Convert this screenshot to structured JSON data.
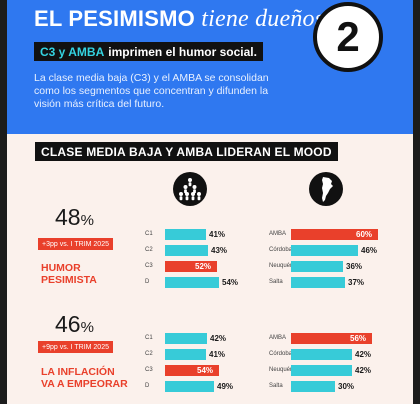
{
  "header": {
    "title_bold": "EL PESIMISMO",
    "title_light": "tiene dueños:",
    "number": "2",
    "subtitle_a": "C3 y AMBA",
    "subtitle_b": "imprimen el humor social.",
    "description": "La clase media baja (C3) y el AMBA se consolidan como los segmentos que concentran y difunden la visión más crítica del futuro."
  },
  "section": {
    "title": "CLASE MEDIA BAJA Y AMBA LIDERAN EL MOOD"
  },
  "colors": {
    "banner": "#2f78f0",
    "cyan": "#37cbd8",
    "red": "#e9402b",
    "dark": "#111111",
    "background": "#fbf1ec"
  },
  "icons": {
    "segments": "people-pyramid-icon",
    "regions": "argentina-map-icon"
  },
  "stats": [
    {
      "value": "48",
      "unit": "%",
      "change": "+3pp vs. I TRIM 2025",
      "label_1": "HUMOR",
      "label_2": "PESIMISTA"
    },
    {
      "value": "46",
      "unit": "%",
      "change": "+9pp vs. I TRIM 2025",
      "label_1": "LA INFLACIÓN",
      "label_2": "VA A EMPEORAR"
    }
  ],
  "chart_data": [
    {
      "type": "bar",
      "orientation": "horizontal",
      "group": "HUMOR PESIMISTA",
      "dimension": "segment",
      "categories": [
        "C1",
        "C2",
        "C3",
        "D"
      ],
      "values": [
        41,
        43,
        52,
        54
      ],
      "labels": [
        "41%",
        "43%",
        "52%",
        "54%"
      ],
      "highlighted": [
        "C3"
      ],
      "xlim": [
        0,
        60
      ]
    },
    {
      "type": "bar",
      "orientation": "horizontal",
      "group": "HUMOR PESIMISTA",
      "dimension": "region",
      "categories": [
        "AMBA",
        "Córdoba",
        "Neuquén",
        "Salta"
      ],
      "values": [
        60,
        46,
        36,
        37
      ],
      "labels": [
        "60%",
        "46%",
        "36%",
        "37%"
      ],
      "highlighted": [
        "AMBA"
      ],
      "xlim": [
        0,
        60
      ]
    },
    {
      "type": "bar",
      "orientation": "horizontal",
      "group": "LA INFLACIÓN VA A EMPEORAR",
      "dimension": "segment",
      "categories": [
        "C1",
        "C2",
        "C3",
        "D"
      ],
      "values": [
        42,
        41,
        54,
        49
      ],
      "labels": [
        "42%",
        "41%",
        "54%",
        "49%"
      ],
      "highlighted": [
        "C3"
      ],
      "xlim": [
        0,
        60
      ]
    },
    {
      "type": "bar",
      "orientation": "horizontal",
      "group": "LA INFLACIÓN VA A EMPEORAR",
      "dimension": "region",
      "categories": [
        "AMBA",
        "Córdoba",
        "Neuquén",
        "Salta"
      ],
      "values": [
        56,
        42,
        42,
        30
      ],
      "labels": [
        "56%",
        "42%",
        "42%",
        "30%"
      ],
      "highlighted": [
        "AMBA"
      ],
      "xlim": [
        0,
        60
      ]
    }
  ]
}
